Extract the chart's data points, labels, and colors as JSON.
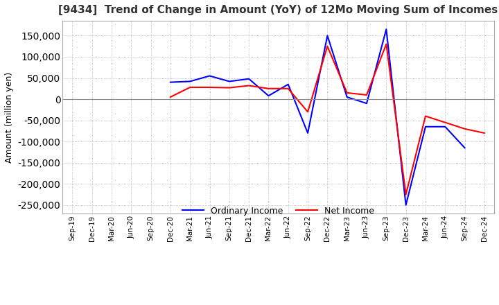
{
  "title": "[9434]  Trend of Change in Amount (YoY) of 12Mo Moving Sum of Incomes",
  "ylabel": "Amount (million yen)",
  "ylim": [
    -270000,
    185000
  ],
  "yticks": [
    -250000,
    -200000,
    -150000,
    -100000,
    -50000,
    0,
    50000,
    100000,
    150000
  ],
  "background_color": "#ffffff",
  "grid_color": "#aaaaaa",
  "ordinary_income_color": "#0000ff",
  "net_income_color": "#ff0000",
  "x_labels": [
    "Sep-19",
    "Dec-19",
    "Mar-20",
    "Jun-20",
    "Sep-20",
    "Dec-20",
    "Mar-21",
    "Jun-21",
    "Sep-21",
    "Dec-21",
    "Mar-22",
    "Jun-22",
    "Sep-22",
    "Dec-22",
    "Mar-23",
    "Jun-23",
    "Sep-23",
    "Dec-23",
    "Mar-24",
    "Jun-24",
    "Sep-24",
    "Dec-24"
  ],
  "ordinary_income": [
    null,
    null,
    null,
    null,
    null,
    40000,
    42000,
    55000,
    42000,
    48000,
    8000,
    35000,
    -80000,
    150000,
    5000,
    -10000,
    165000,
    -250000,
    -65000,
    -65000,
    -115000,
    null
  ],
  "net_income": [
    null,
    null,
    null,
    null,
    null,
    5000,
    28000,
    28000,
    27000,
    32000,
    25000,
    25000,
    -30000,
    125000,
    15000,
    10000,
    130000,
    -225000,
    -40000,
    -55000,
    -70000,
    -80000
  ]
}
